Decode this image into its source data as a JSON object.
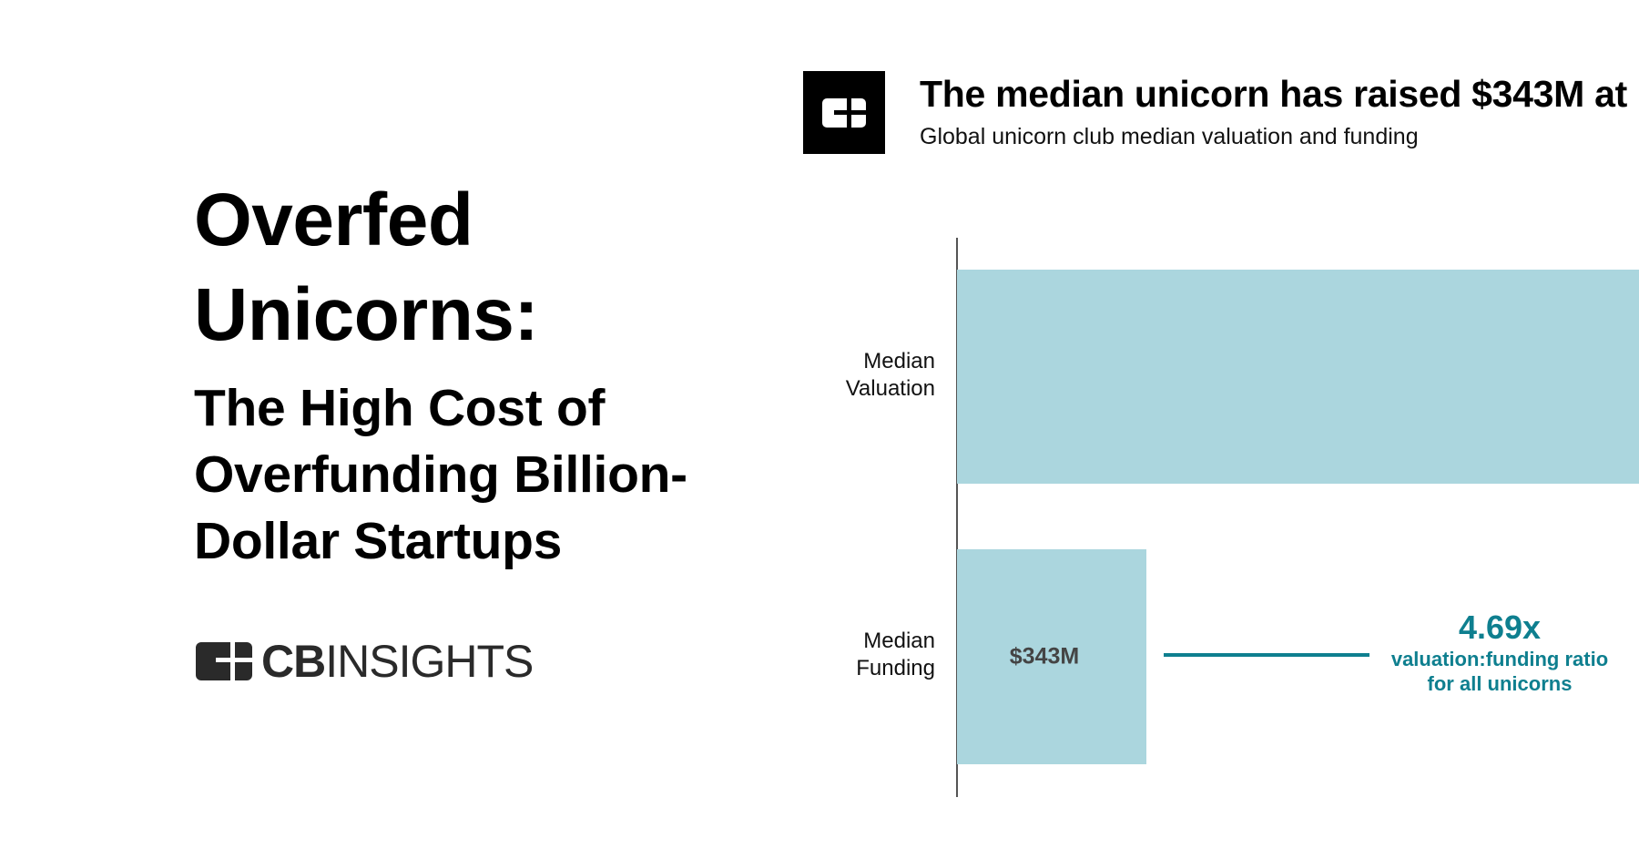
{
  "hero": {
    "title_lines": [
      "Overfed",
      "Unicorns:"
    ],
    "subtitle_lines": [
      "The High Cost of",
      "Overfunding Billion-",
      "Dollar Startups"
    ]
  },
  "brand": {
    "logo_text_bold": "CB",
    "logo_text_light": "INSIGHTS",
    "icon": "cb-insights-logo-icon"
  },
  "colors": {
    "bar": "#abd6de",
    "accent": "#0e7f8f",
    "text": "#000000",
    "bar_label": "#444444"
  },
  "chart_data": {
    "type": "bar",
    "orientation": "horizontal",
    "title": "The median unicorn has raised $343M at",
    "subtitle": "Global unicorn club median valuation and funding",
    "categories": [
      "Median Valuation",
      "Median Funding"
    ],
    "category_lines": [
      [
        "Median",
        "Valuation"
      ],
      [
        "Median",
        "Funding"
      ]
    ],
    "values": [
      null,
      343
    ],
    "unit": "$M",
    "data_labels": [
      null,
      "$343M"
    ],
    "grid": false,
    "annotation": {
      "value": "4.69x",
      "lines": [
        "valuation:funding ratio",
        "for all unicorns"
      ]
    }
  }
}
